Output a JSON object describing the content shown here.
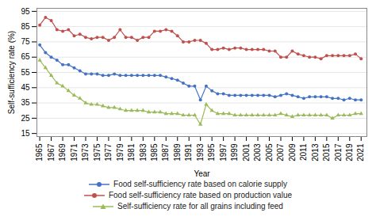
{
  "chart_data": {
    "type": "line",
    "xlabel": "Year",
    "ylabel": "Self-sufficiency rate (%)",
    "x": [
      1965,
      1966,
      1967,
      1968,
      1969,
      1970,
      1971,
      1972,
      1973,
      1974,
      1975,
      1976,
      1977,
      1978,
      1979,
      1980,
      1981,
      1982,
      1983,
      1984,
      1985,
      1986,
      1987,
      1988,
      1989,
      1990,
      1991,
      1992,
      1993,
      1994,
      1995,
      1996,
      1997,
      1998,
      1999,
      2000,
      2001,
      2002,
      2003,
      2004,
      2005,
      2006,
      2007,
      2008,
      2009,
      2010,
      2011,
      2012,
      2013,
      2014,
      2015,
      2016,
      2017,
      2018,
      2019,
      2020,
      2021
    ],
    "series": [
      {
        "name": "Food self-sufficiency rate based on calorie supply",
        "color": "#4472c4",
        "marker": "circle",
        "values": [
          73,
          68,
          65,
          63,
          60,
          60,
          58,
          56,
          54,
          54,
          54,
          53,
          53,
          54,
          53,
          53,
          53,
          53,
          53,
          53,
          53,
          53,
          52,
          51,
          50,
          48,
          46,
          46,
          37,
          46,
          43,
          41,
          41,
          40,
          40,
          40,
          40,
          40,
          40,
          40,
          40,
          39,
          40,
          41,
          40,
          39,
          38,
          39,
          39,
          39,
          39,
          38,
          38,
          37,
          38,
          37,
          37
        ]
      },
      {
        "name": "Food self-sufficiency rate based on production value",
        "color": "#c0504d",
        "marker": "circle",
        "values": [
          86,
          91,
          89,
          83,
          82,
          83,
          79,
          80,
          78,
          77,
          78,
          78,
          76,
          78,
          83,
          78,
          78,
          76,
          78,
          78,
          82,
          82,
          83,
          82,
          79,
          75,
          75,
          76,
          76,
          74,
          70,
          70,
          71,
          70,
          71,
          71,
          70,
          70,
          70,
          70,
          69,
          69,
          65,
          65,
          69,
          67,
          66,
          65,
          65,
          64,
          66,
          66,
          66,
          66,
          66,
          67,
          64
        ]
      },
      {
        "name": "Self-sufficiency rate for all grains including feed",
        "color": "#9bbb59",
        "marker": "triangle",
        "values": [
          63,
          58,
          53,
          48,
          46,
          43,
          40,
          38,
          35,
          34,
          34,
          33,
          32,
          32,
          31,
          30,
          30,
          30,
          30,
          29,
          29,
          29,
          28,
          28,
          28,
          27,
          27,
          27,
          21,
          34,
          30,
          28,
          28,
          28,
          27,
          27,
          27,
          27,
          27,
          27,
          27,
          27,
          28,
          27,
          26,
          27,
          27,
          27,
          27,
          27,
          27,
          25,
          27,
          27,
          27,
          28,
          28
        ]
      }
    ],
    "xlim": [
      1964.5,
      2022
    ],
    "xticks": [
      1965,
      1967,
      1969,
      1971,
      1973,
      1975,
      1977,
      1979,
      1981,
      1983,
      1985,
      1987,
      1989,
      1991,
      1993,
      1995,
      1997,
      1999,
      2001,
      2003,
      2005,
      2007,
      2009,
      2011,
      2013,
      2015,
      2017,
      2019,
      2021
    ],
    "ylim": [
      13,
      97
    ],
    "yticks": [
      15,
      25,
      35,
      45,
      55,
      65,
      75,
      85,
      95
    ],
    "grid": true,
    "legend": "bottom"
  }
}
